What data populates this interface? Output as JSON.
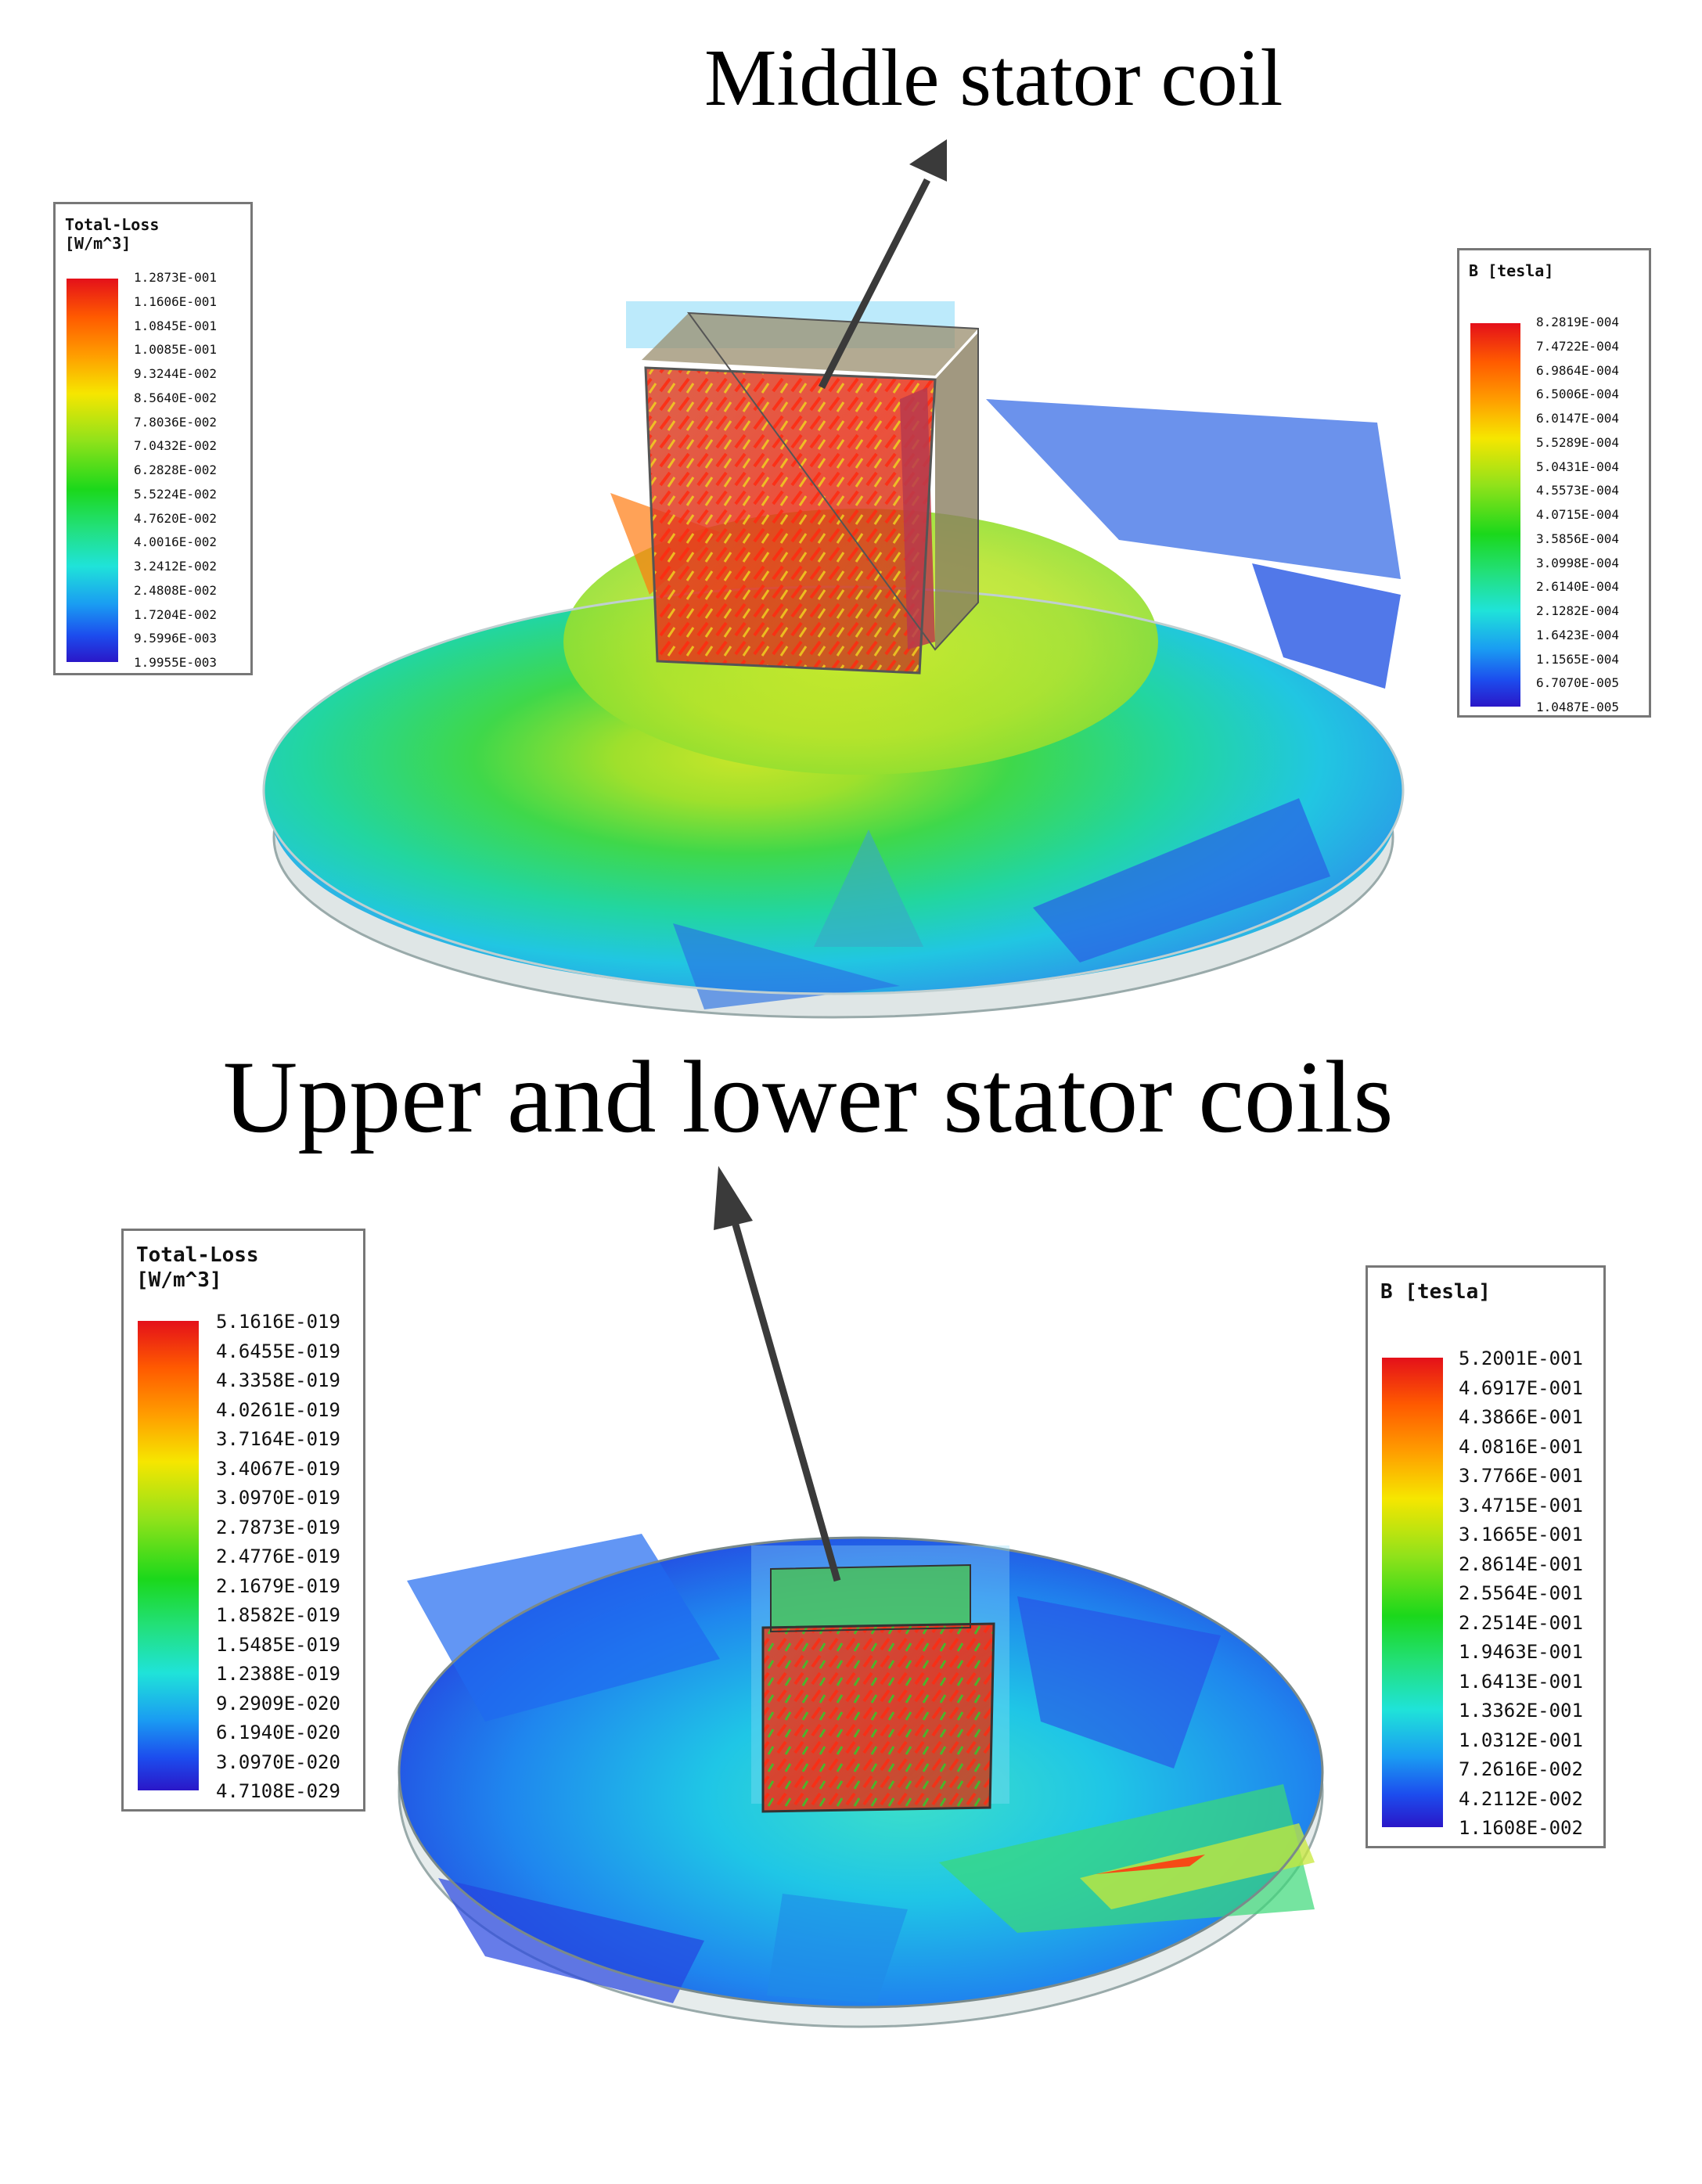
{
  "captions": {
    "top": "Middle stator coil",
    "middle": "Upper and lower stator coils"
  },
  "legends": {
    "top_loss": {
      "title_line1": "Total-Loss",
      "title_line2": "[W/m^3]",
      "ticks": [
        "1.2873E-001",
        "1.1606E-001",
        "1.0845E-001",
        "1.0085E-001",
        "9.3244E-002",
        "8.5640E-002",
        "7.8036E-002",
        "7.0432E-002",
        "6.2828E-002",
        "5.5224E-002",
        "4.7620E-002",
        "4.0016E-002",
        "3.2412E-002",
        "2.4808E-002",
        "1.7204E-002",
        "9.5996E-003",
        "1.9955E-003"
      ]
    },
    "top_b": {
      "title_line1": "B [tesla]",
      "title_line2": "",
      "ticks": [
        "8.2819E-004",
        "7.4722E-004",
        "6.9864E-004",
        "6.5006E-004",
        "6.0147E-004",
        "5.5289E-004",
        "5.0431E-004",
        "4.5573E-004",
        "4.0715E-004",
        "3.5856E-004",
        "3.0998E-004",
        "2.6140E-004",
        "2.1282E-004",
        "1.6423E-004",
        "1.1565E-004",
        "6.7070E-005",
        "1.0487E-005"
      ]
    },
    "bottom_loss": {
      "title_line1": "Total-Loss",
      "title_line2": "[W/m^3]",
      "ticks": [
        "5.1616E-019",
        "4.6455E-019",
        "4.3358E-019",
        "4.0261E-019",
        "3.7164E-019",
        "3.4067E-019",
        "3.0970E-019",
        "2.7873E-019",
        "2.4776E-019",
        "2.1679E-019",
        "1.8582E-019",
        "1.5485E-019",
        "1.2388E-019",
        "9.2909E-020",
        "6.1940E-020",
        "3.0970E-020",
        "4.7108E-029"
      ]
    },
    "bottom_b": {
      "title_line1": "B [tesla]",
      "title_line2": "",
      "ticks": [
        "5.2001E-001",
        "4.6917E-001",
        "4.3866E-001",
        "4.0816E-001",
        "3.7766E-001",
        "3.4715E-001",
        "3.1665E-001",
        "2.8614E-001",
        "2.5564E-001",
        "2.2514E-001",
        "1.9463E-001",
        "1.6413E-001",
        "1.3362E-001",
        "1.0312E-001",
        "7.2616E-002",
        "4.2112E-002",
        "1.1608E-002"
      ]
    }
  },
  "colors": {
    "legend_top": "#e4101a",
    "legend_bottom": "#2a17c8",
    "arrow": "#3a3a3a"
  }
}
